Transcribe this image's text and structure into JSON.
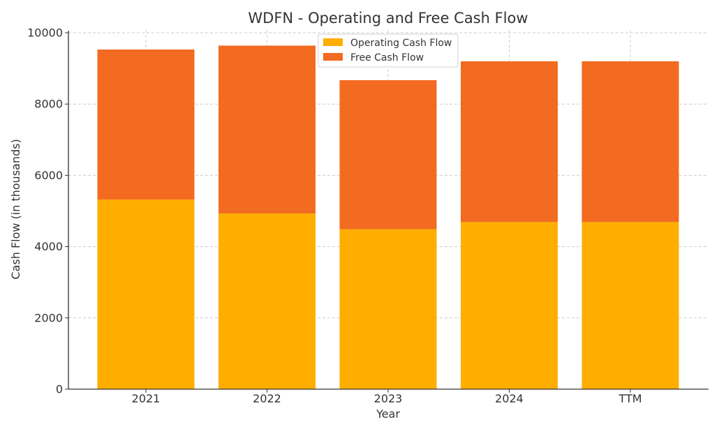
{
  "chart_data": {
    "type": "bar",
    "stacked": true,
    "title": "WDFN - Operating and Free Cash Flow",
    "xlabel": "Year",
    "ylabel": "Cash Flow (in thousands)",
    "categories": [
      "2021",
      "2022",
      "2023",
      "2024",
      "TTM"
    ],
    "series": [
      {
        "name": "Operating Cash Flow",
        "color": "#FFAE00",
        "values": [
          5320,
          4930,
          4490,
          4690,
          4690
        ]
      },
      {
        "name": "Free Cash Flow",
        "color": "#F26B21",
        "values": [
          4210,
          4710,
          4180,
          4510,
          4510
        ]
      }
    ],
    "ylim": [
      0,
      10000
    ],
    "yticks": [
      0,
      2000,
      4000,
      6000,
      8000,
      10000
    ],
    "grid": true,
    "legend_position": "top-center"
  }
}
